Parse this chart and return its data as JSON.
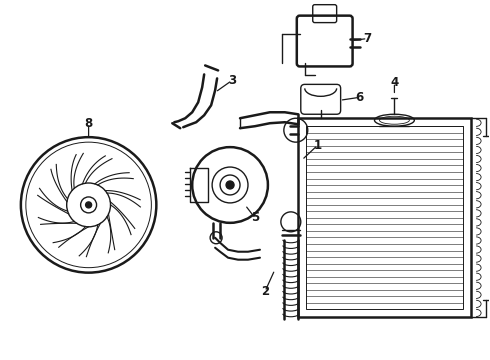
{
  "background_color": "#ffffff",
  "line_color": "#1a1a1a",
  "line_width": 1.0,
  "fig_width": 4.9,
  "fig_height": 3.6,
  "dpi": 100,
  "label_fontsize": 8.0
}
